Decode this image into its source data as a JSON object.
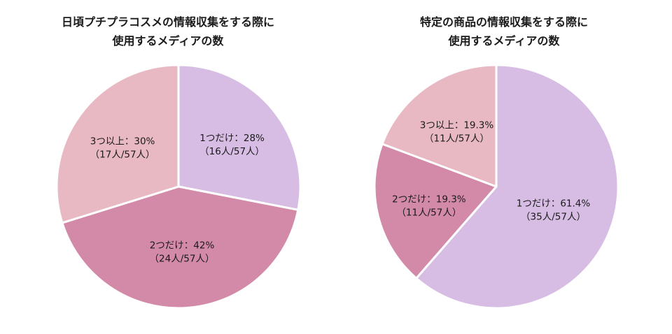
{
  "chart_data": [
    {
      "type": "pie",
      "title": [
        "日頃プチプラコスメの情報収集をする際に",
        "使用するメディアの数"
      ],
      "slices": [
        {
          "label": "1つだけ：28%",
          "sub": "（16人/57人）",
          "count": 16,
          "color": "#d7bde3"
        },
        {
          "label": "2つだけ：42%",
          "sub": "（24人/57人）",
          "count": 24,
          "color": "#d389a8"
        },
        {
          "label": "3つ以上：30%",
          "sub": "（17人/57人）",
          "count": 17,
          "color": "#e8b9c3"
        }
      ]
    },
    {
      "type": "pie",
      "title": [
        "特定の商品の情報収集をする際に",
        "使用するメディアの数"
      ],
      "slices": [
        {
          "label": "1つだけ：61.4%",
          "sub": "（35人/57人）",
          "count": 35,
          "color": "#d7bde3"
        },
        {
          "label": "2つだけ：19.3%",
          "sub": "（11人/57人）",
          "count": 11,
          "color": "#d389a8"
        },
        {
          "label": "3つ以上：19.3%",
          "sub": "（11人/57人）",
          "count": 11,
          "color": "#e8b9c3"
        }
      ]
    }
  ]
}
